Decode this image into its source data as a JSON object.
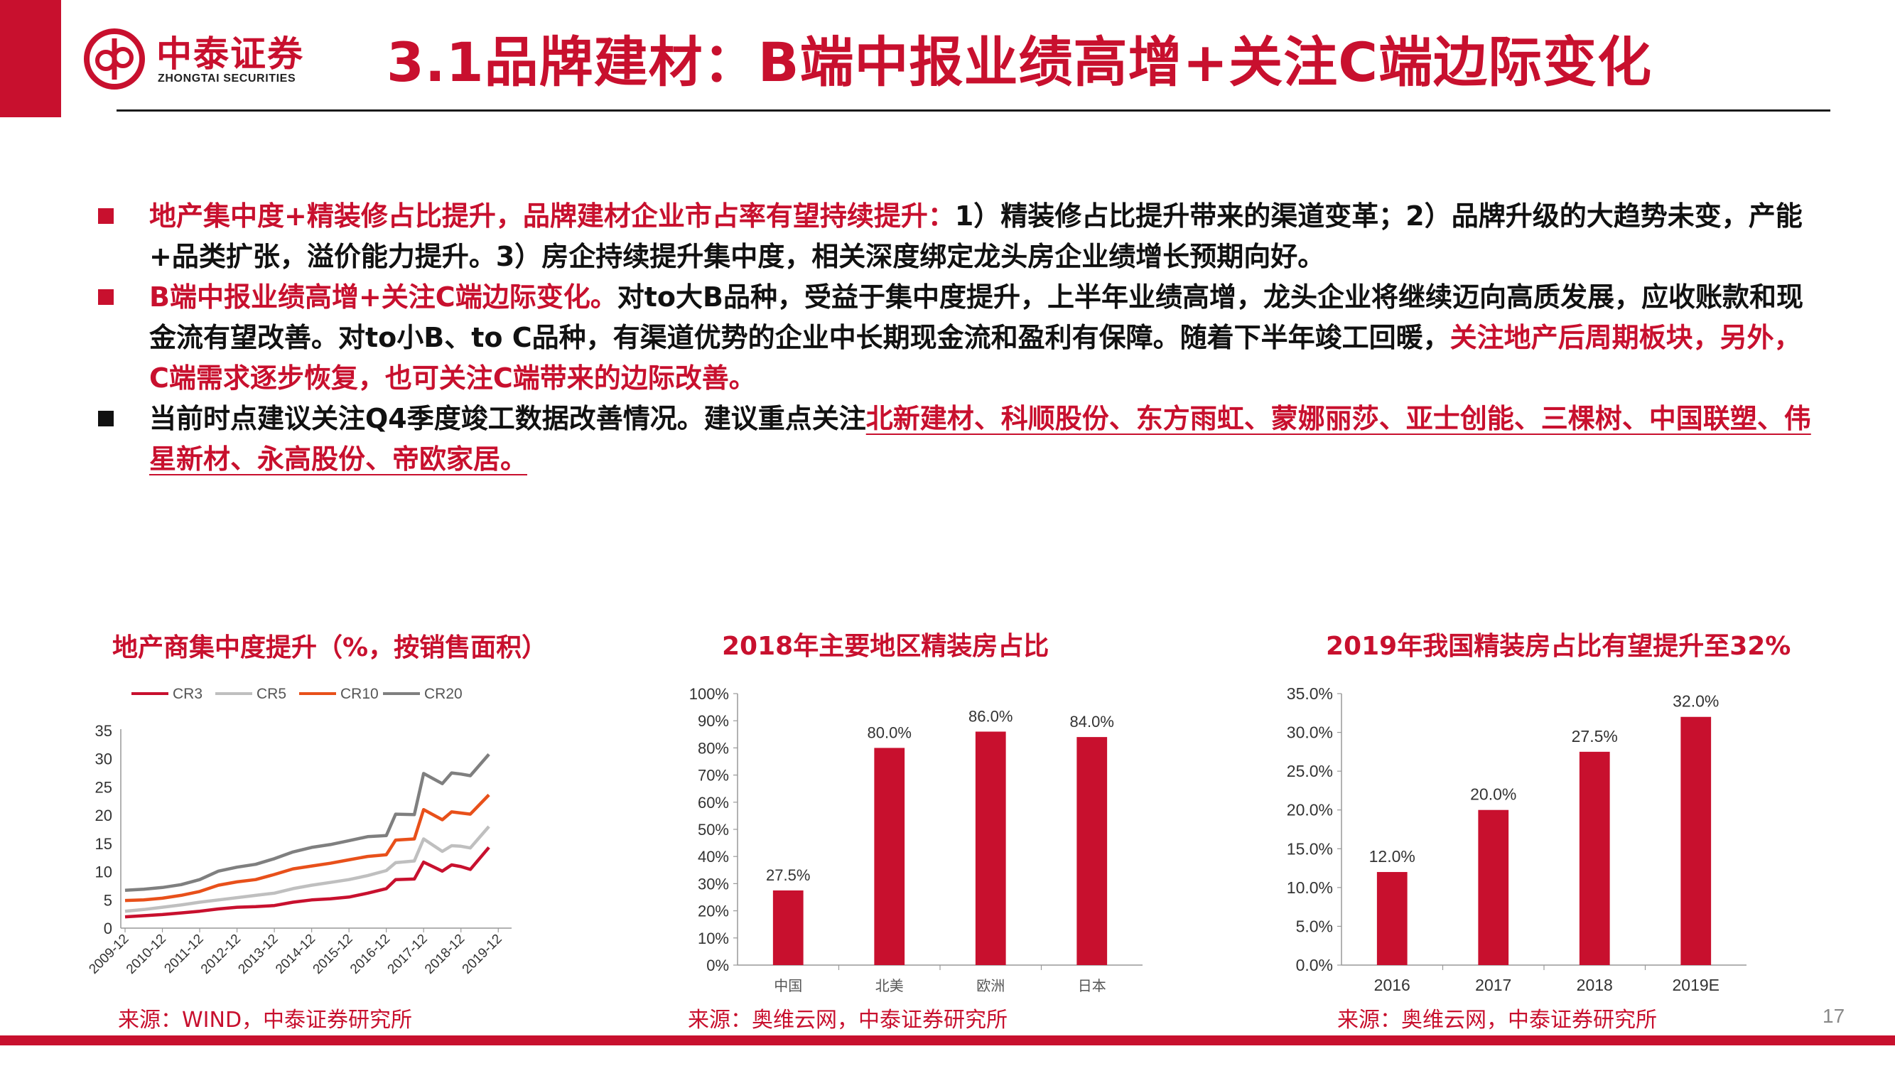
{
  "header": {
    "logo_cn": "中泰证券",
    "logo_en": "ZHONGTAI SECURITIES",
    "title": "3.1品牌建材：B端中报业绩高增+关注C端边际变化"
  },
  "bullets": {
    "b1_red": "地产集中度+精装修占比提升，品牌建材企业市占率有望持续提升：",
    "b1_rest": "1）精装修占比提升带来的渠道变革；2）品牌升级的大趋势未变，产能+品类扩张，溢价能力提升。3）房企持续提升集中度，相关深度绑定龙头房企业绩增长预期向好。",
    "b2_red": "B端中报业绩高增+关注C端边际变化。",
    "b2_mid": "对to大B品种，受益于集中度提升，上半年业绩高增，龙头企业将继续迈向高质发展，应收账款和现金流有望改善。对to小B、to C品种，有渠道优势的企业中长期现金流和盈利有保障。随着下半年竣工回暖，",
    "b2_red2": "关注地产后周期板块，另外，C端需求逐步恢复，也可关注C端带来的边际改善。",
    "b3_text": "当前时点建议关注Q4季度竣工数据改善情况。建议重点关注",
    "b3_stocks": "北新建材、科顺股份、东方雨虹、蒙娜丽莎、亚士创能、三棵树、中国联塑、伟星新材、永高股份、帝欧家居。"
  },
  "charts": {
    "c1_title": "地产商集中度提升（%，按销售面积）",
    "c2_title": "2018年主要地区精装房占比",
    "c3_title": "2019年我国精装房占比有望提升至32%"
  },
  "sources": {
    "s1": "来源：WIND，中泰证券研究所",
    "s2": "来源：奥维云网，中泰证券研究所",
    "s3": "来源：奥维云网，中泰证券研究所"
  },
  "page_number": "17",
  "colors": {
    "brand_red": "#c8102e",
    "cr3": "#c8102e",
    "cr5": "#bfbfbf",
    "cr10": "#e8501a",
    "cr20": "#7f7f7f"
  },
  "chart_data": [
    {
      "type": "line",
      "title": "地产商集中度提升（%，按销售面积）",
      "x_ticks": [
        "2009-12",
        "2010-12",
        "2011-12",
        "2012-12",
        "2013-12",
        "2014-12",
        "2015-12",
        "2016-12",
        "2017-12",
        "2018-12",
        "2019-12"
      ],
      "ylim": [
        0,
        35
      ],
      "y_ticks": [
        0,
        5,
        10,
        15,
        20,
        25,
        30,
        35
      ],
      "legend": "top",
      "series": [
        {
          "name": "CR3",
          "values": [
            [
              0,
              2.0
            ],
            [
              0.5,
              2.2
            ],
            [
              1,
              2.4
            ],
            [
              1.5,
              2.7
            ],
            [
              2,
              3.0
            ],
            [
              2.5,
              3.4
            ],
            [
              3,
              3.7
            ],
            [
              3.5,
              3.8
            ],
            [
              4,
              4.0
            ],
            [
              4.5,
              4.6
            ],
            [
              5,
              5.0
            ],
            [
              5.5,
              5.2
            ],
            [
              6,
              5.5
            ],
            [
              6.5,
              6.2
            ],
            [
              7,
              7.0
            ],
            [
              7.25,
              8.6
            ],
            [
              7.75,
              8.7
            ],
            [
              8,
              11.7
            ],
            [
              8.5,
              10.1
            ],
            [
              8.75,
              11.2
            ],
            [
              9,
              10.9
            ],
            [
              9.25,
              10.4
            ],
            [
              9.75,
              14.3
            ]
          ]
        },
        {
          "name": "CR5",
          "values": [
            [
              0,
              3.0
            ],
            [
              0.5,
              3.3
            ],
            [
              1,
              3.7
            ],
            [
              1.5,
              4.1
            ],
            [
              2,
              4.6
            ],
            [
              2.5,
              5.0
            ],
            [
              3,
              5.4
            ],
            [
              3.5,
              5.8
            ],
            [
              4,
              6.2
            ],
            [
              4.5,
              7.0
            ],
            [
              5,
              7.6
            ],
            [
              5.5,
              8.1
            ],
            [
              6,
              8.6
            ],
            [
              6.5,
              9.3
            ],
            [
              7,
              10.2
            ],
            [
              7.25,
              11.6
            ],
            [
              7.75,
              11.9
            ],
            [
              8,
              15.8
            ],
            [
              8.5,
              13.6
            ],
            [
              8.75,
              14.6
            ],
            [
              9,
              14.5
            ],
            [
              9.25,
              14.2
            ],
            [
              9.75,
              18.0
            ]
          ]
        },
        {
          "name": "CR10",
          "values": [
            [
              0,
              4.9
            ],
            [
              0.5,
              5.0
            ],
            [
              1,
              5.3
            ],
            [
              1.5,
              5.8
            ],
            [
              2,
              6.5
            ],
            [
              2.5,
              7.6
            ],
            [
              3,
              8.2
            ],
            [
              3.5,
              8.6
            ],
            [
              4,
              9.5
            ],
            [
              4.5,
              10.5
            ],
            [
              5,
              11.0
            ],
            [
              5.5,
              11.5
            ],
            [
              6,
              12.1
            ],
            [
              6.5,
              12.7
            ],
            [
              7,
              13.0
            ],
            [
              7.25,
              15.6
            ],
            [
              7.75,
              15.8
            ],
            [
              8,
              21.0
            ],
            [
              8.5,
              19.2
            ],
            [
              8.75,
              20.6
            ],
            [
              9,
              20.4
            ],
            [
              9.25,
              20.2
            ],
            [
              9.75,
              23.6
            ]
          ]
        },
        {
          "name": "CR20",
          "values": [
            [
              0,
              6.7
            ],
            [
              0.5,
              6.9
            ],
            [
              1,
              7.2
            ],
            [
              1.5,
              7.7
            ],
            [
              2,
              8.6
            ],
            [
              2.5,
              10.1
            ],
            [
              3,
              10.8
            ],
            [
              3.5,
              11.3
            ],
            [
              4,
              12.3
            ],
            [
              4.5,
              13.5
            ],
            [
              5,
              14.3
            ],
            [
              5.5,
              14.8
            ],
            [
              6,
              15.5
            ],
            [
              6.5,
              16.2
            ],
            [
              7,
              16.4
            ],
            [
              7.25,
              20.2
            ],
            [
              7.75,
              20.1
            ],
            [
              8,
              27.4
            ],
            [
              8.5,
              25.6
            ],
            [
              8.75,
              27.5
            ],
            [
              9,
              27.3
            ],
            [
              9.25,
              27.0
            ],
            [
              9.75,
              30.8
            ]
          ]
        }
      ]
    },
    {
      "type": "bar",
      "title": "2018年主要地区精装房占比",
      "categories": [
        "中国",
        "北美",
        "欧洲",
        "日本"
      ],
      "values": [
        27.5,
        80.0,
        86.0,
        84.0
      ],
      "labels": [
        "27.5%",
        "80.0%",
        "86.0%",
        "84.0%"
      ],
      "ylim": [
        0,
        100
      ],
      "y_ticks": [
        "0%",
        "10%",
        "20%",
        "30%",
        "40%",
        "50%",
        "60%",
        "70%",
        "80%",
        "90%",
        "100%"
      ]
    },
    {
      "type": "bar",
      "title": "2019年我国精装房占比有望提升至32%",
      "categories": [
        "2016",
        "2017",
        "2018",
        "2019E"
      ],
      "values": [
        12.0,
        20.0,
        27.5,
        32.0
      ],
      "labels": [
        "12.0%",
        "20.0%",
        "27.5%",
        "32.0%"
      ],
      "ylim": [
        0,
        35
      ],
      "y_ticks": [
        "0.0%",
        "5.0%",
        "10.0%",
        "15.0%",
        "20.0%",
        "25.0%",
        "30.0%",
        "35.0%"
      ]
    }
  ]
}
